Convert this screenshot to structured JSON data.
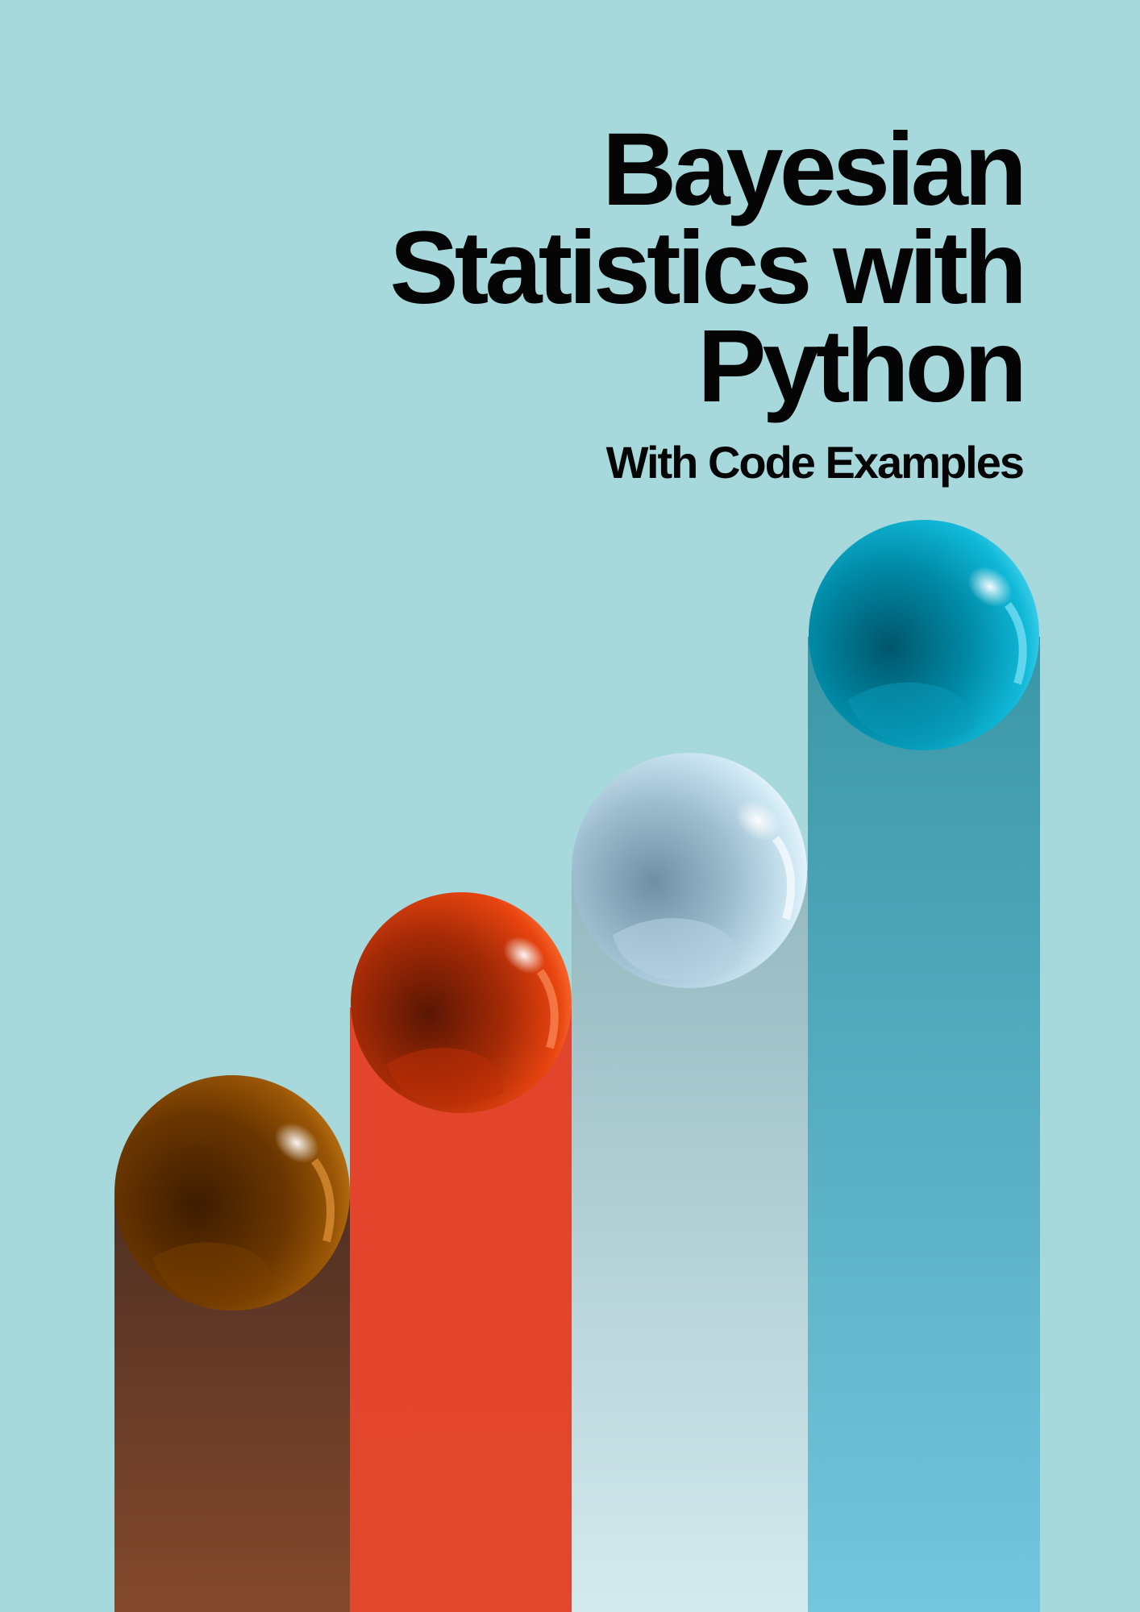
{
  "cover": {
    "title_lines": [
      "Bayesian",
      "Statistics with",
      "Python"
    ],
    "subtitle": "With Code Examples"
  },
  "colors": {
    "background": "#a7d8dc",
    "title_text": "#050505",
    "bar_brown": "#6b3e24",
    "bar_red": "#e2452b",
    "bar_grey": "#a8c7cc",
    "bar_blue": "#5cb3c8",
    "ball_brown": "#8a4a00",
    "ball_red": "#e6400f",
    "ball_pale": "#c7e3f0",
    "ball_cyan": "#12b6d6"
  },
  "illustration": {
    "name": "rising-columns-with-spheres",
    "columns": [
      "brown",
      "red",
      "grey",
      "blue"
    ]
  }
}
